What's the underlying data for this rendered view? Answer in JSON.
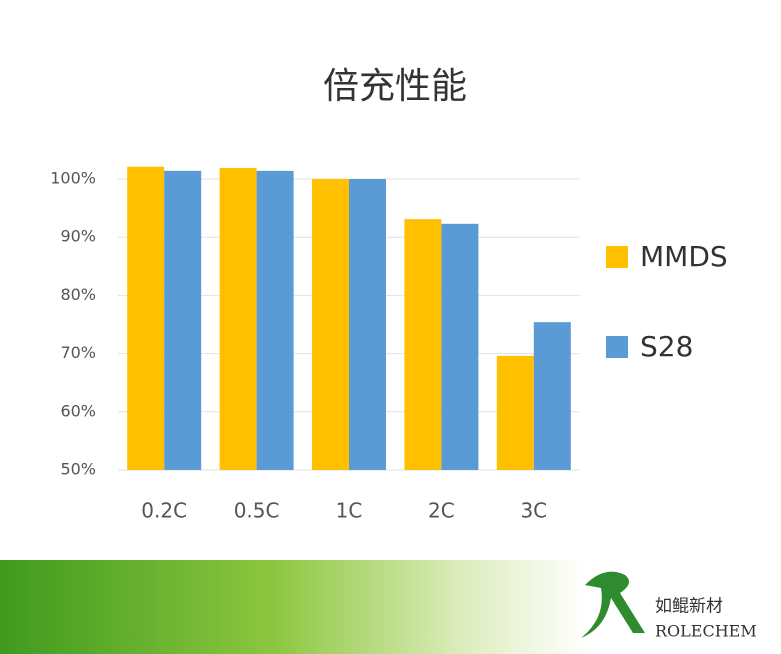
{
  "chart_data": {
    "type": "bar",
    "title": "倍充性能",
    "categories": [
      "0.2C",
      "0.5C",
      "1C",
      "2C",
      "3C"
    ],
    "series": [
      {
        "name": "MMDS",
        "color": "#ffc000",
        "values": [
          102.1,
          101.9,
          100,
          93.1,
          69.6
        ]
      },
      {
        "name": "S28",
        "color": "#5b9bd5",
        "values": [
          101.4,
          101.4,
          100,
          92.3,
          75.4
        ]
      }
    ],
    "ylim": [
      50,
      105
    ],
    "yticks": [
      {
        "value": 50,
        "label": "50%"
      },
      {
        "value": 60,
        "label": "60%"
      },
      {
        "value": 70,
        "label": "70%"
      },
      {
        "value": 80,
        "label": "80%"
      },
      {
        "value": 90,
        "label": "90%"
      },
      {
        "value": 100,
        "label": "100%"
      }
    ],
    "grid": true,
    "legend": "right"
  },
  "footer": {
    "brand_cn": "如鲲新材",
    "brand_en": "ROLECHEM"
  }
}
